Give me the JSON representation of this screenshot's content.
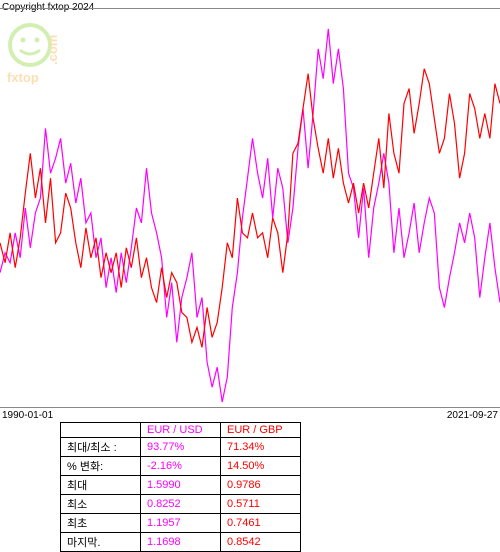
{
  "copyright": "Copyright fxtop 2024",
  "watermark_text": "fxtop.com",
  "chart": {
    "type": "line",
    "date_start": "1990-01-01",
    "date_end": "2021-09-27",
    "background_color": "#ffffff",
    "series": [
      {
        "name": "EUR / USD",
        "color": "#ff00ff",
        "line_width": 1.2,
        "points": [
          265,
          245,
          255,
          225,
          250,
          200,
          240,
          205,
          190,
          120,
          165,
          150,
          130,
          175,
          155,
          195,
          170,
          215,
          205,
          250,
          230,
          280,
          250,
          285,
          245,
          275,
          240,
          200,
          215,
          160,
          205,
          225,
          250,
          310,
          275,
          335,
          290,
          270,
          245,
          310,
          290,
          355,
          380,
          360,
          395,
          370,
          300,
          265,
          210,
          170,
          130,
          165,
          190,
          150,
          210,
          160,
          180,
          235,
          200,
          140,
          100,
          160,
          105,
          40,
          70,
          20,
          75,
          40,
          80,
          165,
          180,
          230,
          180,
          250,
          200,
          175,
          145,
          175,
          245,
          200,
          250,
          225,
          195,
          245,
          215,
          190,
          205,
          280,
          300,
          270,
          245,
          215,
          235,
          205,
          230,
          290,
          250,
          215,
          260,
          295
        ]
      },
      {
        "name": "EUR / GBP",
        "color": "#ff0000",
        "line_width": 1.2,
        "points": [
          235,
          255,
          225,
          260,
          230,
          185,
          145,
          190,
          160,
          215,
          170,
          235,
          225,
          185,
          200,
          235,
          260,
          220,
          250,
          230,
          270,
          245,
          265,
          245,
          280,
          240,
          260,
          230,
          270,
          250,
          280,
          295,
          260,
          290,
          265,
          275,
          305,
          310,
          335,
          320,
          340,
          300,
          330,
          315,
          280,
          235,
          250,
          190,
          225,
          230,
          205,
          230,
          225,
          250,
          210,
          225,
          265,
          225,
          145,
          135,
          100,
          65,
          110,
          140,
          165,
          130,
          170,
          140,
          175,
          195,
          175,
          205,
          175,
          200,
          165,
          130,
          180,
          105,
          145,
          165,
          95,
          80,
          125,
          95,
          60,
          75,
          110,
          145,
          130,
          85,
          115,
          170,
          145,
          85,
          100,
          130,
          105,
          130,
          75,
          95
        ]
      }
    ]
  },
  "table": {
    "header_cells": [
      {
        "text": "EUR / USD",
        "color": "#ff00ff"
      },
      {
        "text": "EUR / GBP",
        "color": "#ff0000"
      }
    ],
    "rows": [
      {
        "label": "최대/최소 :",
        "v1": "93.77%",
        "c1": "#ff00ff",
        "v2": "71.34%",
        "c2": "#ff0000"
      },
      {
        "label": "% 변화:",
        "v1": "-2.16%",
        "c1": "#ff00ff",
        "v2": "14.50%",
        "c2": "#ff0000"
      },
      {
        "label": "최대",
        "v1": "1.5990",
        "c1": "#ff00ff",
        "v2": "0.9786",
        "c2": "#ff0000"
      },
      {
        "label": "최소",
        "v1": "0.8252",
        "c1": "#ff00ff",
        "v2": "0.5711",
        "c2": "#ff0000"
      },
      {
        "label": "최초",
        "v1": "1.1957",
        "c1": "#ff00ff",
        "v2": "0.7461",
        "c2": "#ff0000"
      },
      {
        "label": "마지막.",
        "v1": "1.1698",
        "c1": "#ff00ff",
        "v2": "0.8542",
        "c2": "#ff0000"
      }
    ]
  },
  "watermark": {
    "face_color": "#7ed321",
    "text_color": "#f5a623"
  }
}
